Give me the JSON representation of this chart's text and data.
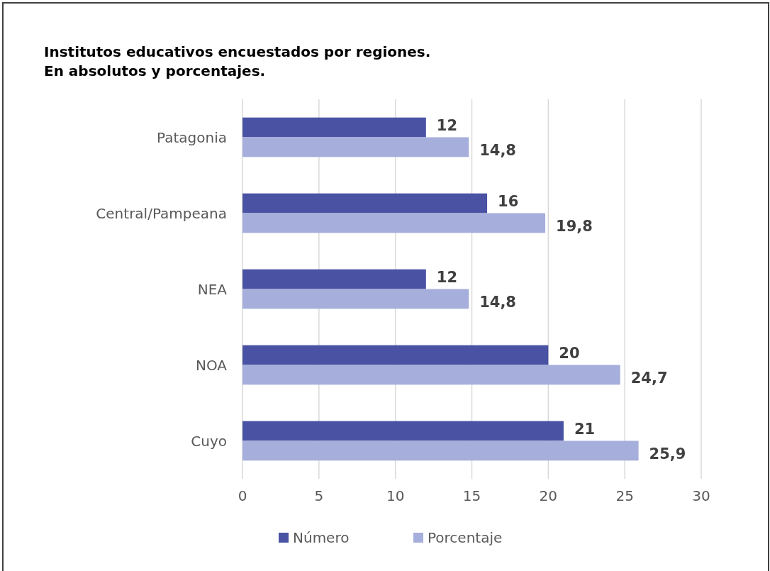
{
  "chart_data": {
    "type": "bar",
    "orientation": "horizontal",
    "title": "Institutos educativos encuestados por regiones.\nEn absolutos y porcentajes.",
    "categories": [
      "Patagonia",
      "Central/Pampeana",
      "NEA",
      "NOA",
      "Cuyo"
    ],
    "series": [
      {
        "name": "Número",
        "color": "#4a52a3",
        "values": [
          12,
          16,
          12,
          20,
          21
        ],
        "value_labels": [
          "12",
          "16",
          "12",
          "20",
          "21"
        ]
      },
      {
        "name": "Porcentaje",
        "color": "#a6aedb",
        "values": [
          14.8,
          19.8,
          14.8,
          24.7,
          25.9
        ],
        "value_labels": [
          "14,8",
          "19,8",
          "14,8",
          "24,7",
          "25,9"
        ]
      }
    ],
    "xlim": [
      0,
      30
    ],
    "xticks": [
      0,
      5,
      10,
      15,
      20,
      25,
      30
    ],
    "grid": "x",
    "legend": "bottom"
  }
}
